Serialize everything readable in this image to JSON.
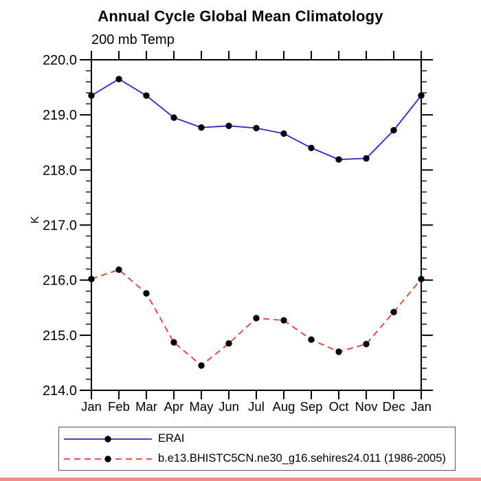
{
  "chart_data": {
    "type": "line",
    "title": "Annual Cycle Global Mean Climatology",
    "subtitle": "200 mb Temp",
    "ylabel": "K",
    "xlabel": "",
    "categories": [
      "Jan",
      "Feb",
      "Mar",
      "Apr",
      "May",
      "Jun",
      "Jul",
      "Aug",
      "Sep",
      "Oct",
      "Nov",
      "Dec",
      "Jan"
    ],
    "ylim": [
      214.0,
      220.0
    ],
    "ytick_interval": 1.0,
    "minor_tick_interval": 0.2,
    "ytick_labels": [
      "220.0",
      "219.0",
      "218.0",
      "217.0",
      "216.0",
      "215.0",
      "214.0"
    ],
    "grid": false,
    "axis_color": "#000000",
    "marker": "filled-circle",
    "marker_color": "#000000",
    "legend_position": "bottom-left",
    "series": [
      {
        "name": "ERAI",
        "color": "#2626cc",
        "line_style": "solid",
        "values": [
          219.35,
          219.65,
          219.35,
          218.95,
          218.77,
          218.8,
          218.76,
          218.66,
          218.4,
          218.19,
          218.21,
          218.72,
          219.35
        ]
      },
      {
        "name": "b.e13.BHISTC5CN.ne30_g16.sehires24.011 (1986-2005)",
        "color": "#e8392f",
        "line_style": "dashed",
        "values": [
          216.02,
          216.19,
          215.76,
          214.87,
          214.45,
          214.85,
          215.31,
          215.27,
          214.92,
          214.7,
          214.84,
          215.42,
          216.02
        ]
      }
    ]
  },
  "decorations": {
    "bottom_strip_color": "#f28b82"
  }
}
